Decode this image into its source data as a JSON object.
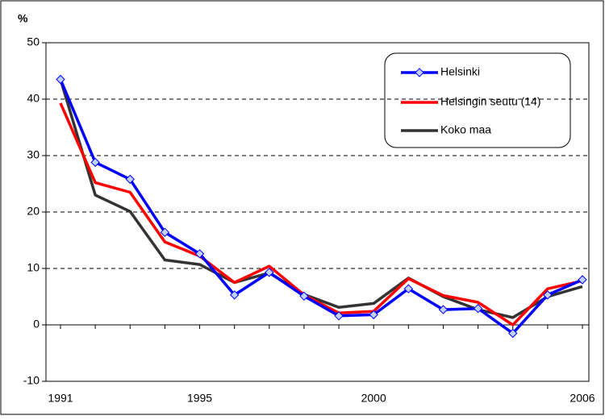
{
  "chart_data": {
    "type": "line",
    "y_label": "%",
    "x": [
      1991,
      1992,
      1993,
      1994,
      1995,
      1996,
      1997,
      1998,
      1999,
      2000,
      2001,
      2002,
      2003,
      2004,
      2005,
      2006
    ],
    "xlim": [
      1991,
      2006
    ],
    "xticks": [
      1991,
      1995,
      2000,
      2006
    ],
    "ylim": [
      -10,
      50
    ],
    "yticks": [
      -10,
      0,
      10,
      20,
      30,
      40,
      50
    ],
    "grid": true,
    "legend": "upper right",
    "series": [
      {
        "name": "Helsinki",
        "color": "#0000ff",
        "marker": "diamond",
        "values": [
          43.5,
          28.8,
          25.8,
          16.4,
          12.6,
          5.3,
          9.3,
          5.1,
          1.6,
          1.8,
          6.4,
          2.7,
          2.9,
          -1.5,
          5.3,
          8.0
        ]
      },
      {
        "name": "Helsingin seutu (14)",
        "color": "#ff0000",
        "values": [
          39.3,
          25.2,
          23.5,
          14.7,
          12.2,
          7.5,
          10.4,
          5.3,
          2.1,
          2.4,
          8.2,
          5.2,
          4.0,
          0.0,
          6.4,
          7.8
        ]
      },
      {
        "name": "Koko maa",
        "color": "#333333",
        "values": [
          43.5,
          23.0,
          20.1,
          11.5,
          10.7,
          7.5,
          9.2,
          5.4,
          3.1,
          3.8,
          8.3,
          5.0,
          2.7,
          1.3,
          5.0,
          6.8
        ]
      }
    ]
  }
}
